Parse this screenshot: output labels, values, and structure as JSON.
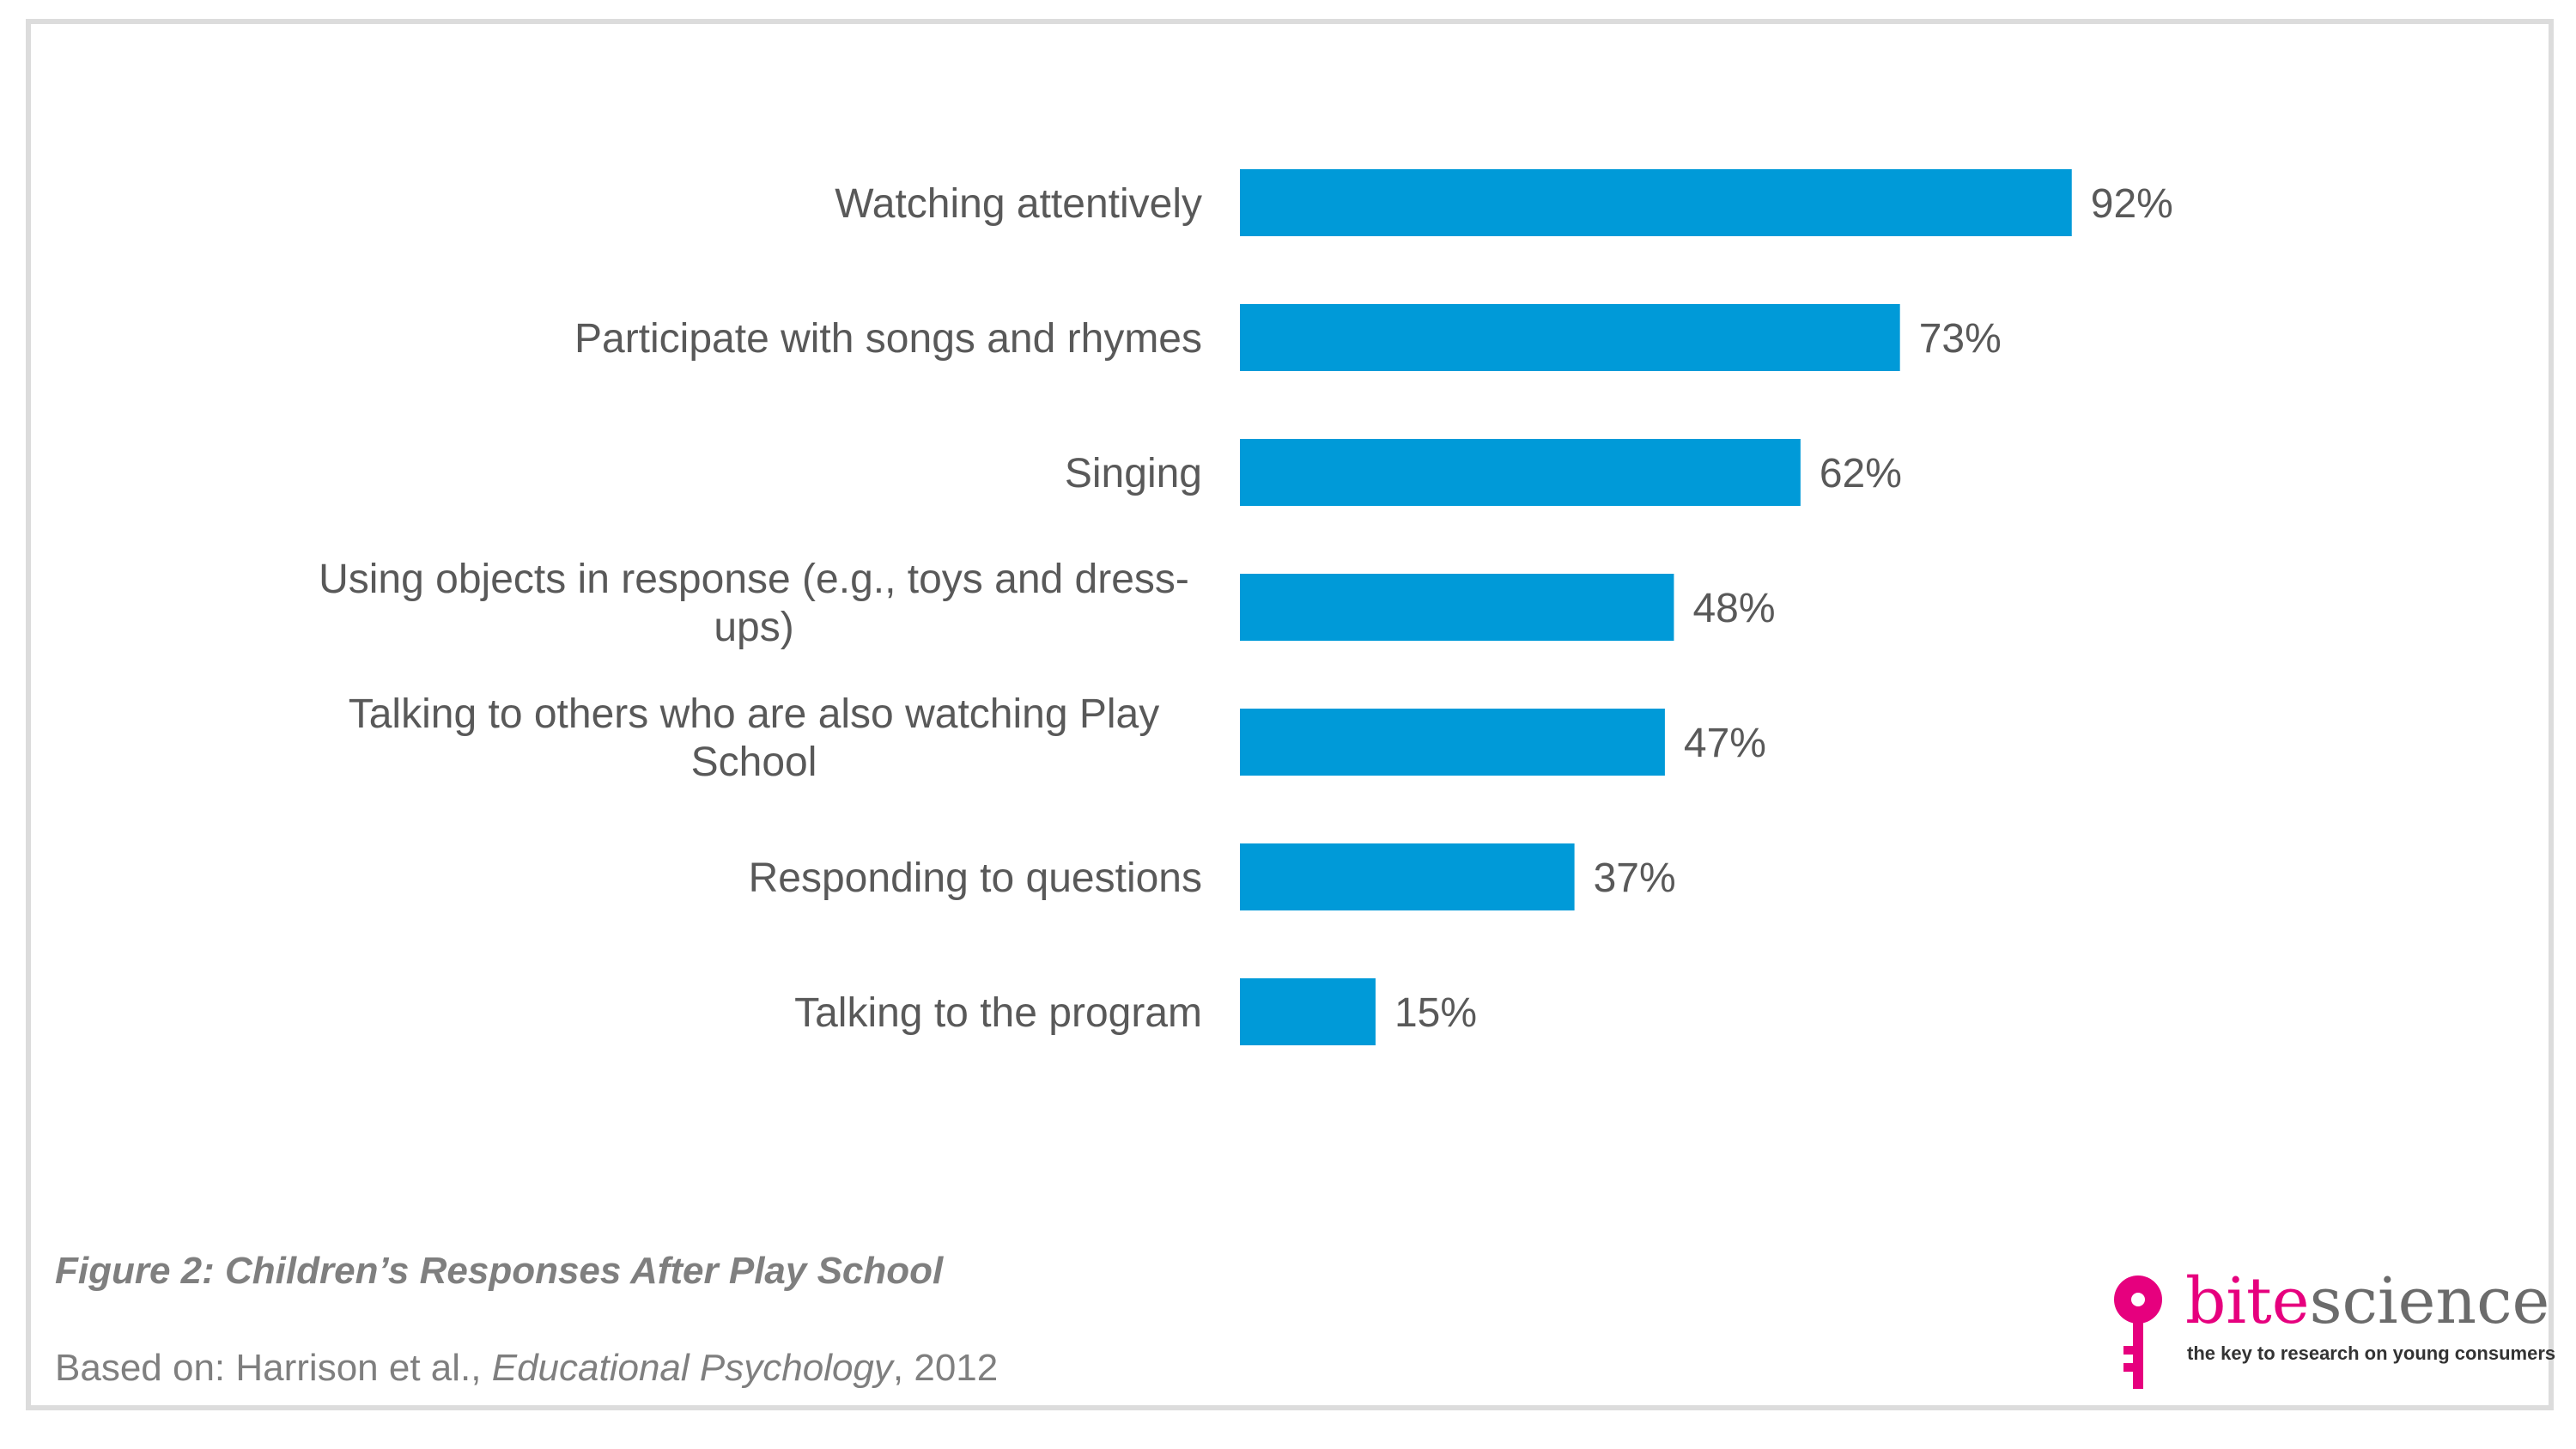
{
  "chart_data": {
    "type": "bar",
    "orientation": "horizontal",
    "categories": [
      "Watching attentively",
      "Participate with songs and rhymes",
      "Singing",
      "Using objects in response (e.g., toys and dress-ups)",
      "Talking to others who are also watching Play School",
      "Responding to questions",
      "Talking to the program"
    ],
    "category_lines": [
      [
        "Watching attentively"
      ],
      [
        "Participate with songs and rhymes"
      ],
      [
        "Singing"
      ],
      [
        "Using objects in response (e.g., toys and dress-",
        "ups)"
      ],
      [
        "Talking to others who are also watching Play",
        "School"
      ],
      [
        "Responding to questions"
      ],
      [
        "Talking to the program"
      ]
    ],
    "values": [
      92,
      73,
      62,
      48,
      47,
      37,
      15
    ],
    "value_labels": [
      "92%",
      "73%",
      "62%",
      "48%",
      "47%",
      "37%",
      "15%"
    ],
    "unit": "%",
    "xlim": [
      0,
      100
    ],
    "grid": false,
    "bar_color": "#009ad8",
    "title": "",
    "xlabel": "",
    "ylabel": ""
  },
  "caption": "Figure 2: Children’s Responses After Play School",
  "source": {
    "prefix": "Based on: Harrison et al., ",
    "journal": "Educational Psychology",
    "suffix": ", 2012"
  },
  "logo": {
    "brand_part1": "bite",
    "brand_part2": "science",
    "tagline": "the key to research on young consumers",
    "icon": "key-icon",
    "brand_color": "#e6007e"
  }
}
